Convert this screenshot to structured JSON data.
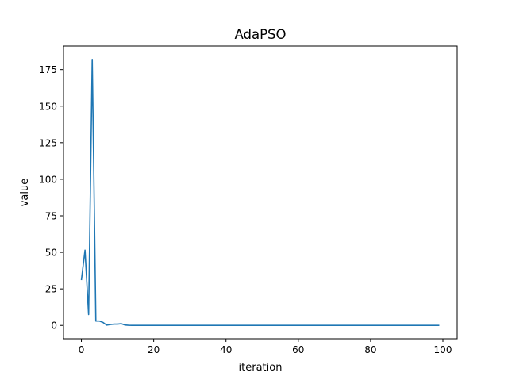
{
  "chart_data": {
    "type": "line",
    "title": "AdaPSO",
    "xlabel": "iteration",
    "ylabel": "value",
    "xlim": [
      -4.95,
      103.95
    ],
    "ylim": [
      -9.1,
      191.1
    ],
    "x_ticks": [
      0,
      20,
      40,
      60,
      80,
      100
    ],
    "y_ticks": [
      0,
      25,
      50,
      75,
      100,
      125,
      150,
      175
    ],
    "grid": false,
    "legend": "none",
    "series": [
      {
        "color": "#1f77b4",
        "x": [
          0,
          1,
          2,
          3,
          4,
          5,
          6,
          7,
          8,
          9,
          10,
          11,
          12,
          13,
          14,
          15,
          16,
          17,
          18,
          19,
          20,
          21,
          22,
          23,
          24,
          25,
          26,
          27,
          28,
          29,
          30,
          31,
          32,
          33,
          34,
          35,
          36,
          37,
          38,
          39,
          40,
          41,
          42,
          43,
          44,
          45,
          46,
          47,
          48,
          49,
          50,
          51,
          52,
          53,
          54,
          55,
          56,
          57,
          58,
          59,
          60,
          61,
          62,
          63,
          64,
          65,
          66,
          67,
          68,
          69,
          70,
          71,
          72,
          73,
          74,
          75,
          76,
          77,
          78,
          79,
          80,
          81,
          82,
          83,
          84,
          85,
          86,
          87,
          88,
          89,
          90,
          91,
          92,
          93,
          94,
          95,
          96,
          97,
          98,
          99
        ],
        "y": [
          31,
          51.5,
          7.5,
          182,
          3,
          3,
          2,
          0.2,
          0.6,
          0.9,
          0.9,
          1.2,
          0.3,
          0.1,
          0.05,
          0.05,
          0.05,
          0.05,
          0.05,
          0.05,
          0.05,
          0.05,
          0.05,
          0.05,
          0.05,
          0.05,
          0.05,
          0.05,
          0.05,
          0.05,
          0.05,
          0.05,
          0.05,
          0.05,
          0.05,
          0.05,
          0.05,
          0.05,
          0.05,
          0.05,
          0.05,
          0.05,
          0.05,
          0.05,
          0.05,
          0.05,
          0.05,
          0.05,
          0.05,
          0.05,
          0.05,
          0.05,
          0.05,
          0.05,
          0.05,
          0.05,
          0.05,
          0.05,
          0.05,
          0.05,
          0.05,
          0.05,
          0.05,
          0.05,
          0.05,
          0.05,
          0.05,
          0.05,
          0.05,
          0.05,
          0.05,
          0.05,
          0.05,
          0.05,
          0.05,
          0.05,
          0.05,
          0.05,
          0.05,
          0.05,
          0.05,
          0.05,
          0.05,
          0.05,
          0.05,
          0.05,
          0.05,
          0.05,
          0.05,
          0.05,
          0.05,
          0.05,
          0.05,
          0.05,
          0.05,
          0.05,
          0.05,
          0.05,
          0.05,
          0.05
        ]
      }
    ]
  }
}
